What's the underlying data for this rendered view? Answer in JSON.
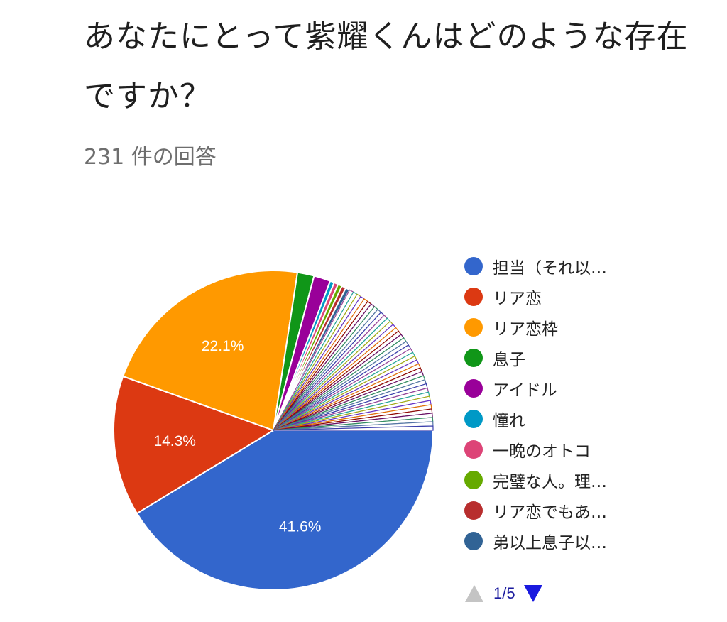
{
  "question": {
    "title": "あなたにとって紫耀くんはどのような存在ですか？",
    "responses": "231 件の回答"
  },
  "chart_data": {
    "type": "pie",
    "title": "あなたにとって紫耀くんはどのような存在ですか？",
    "total_responses": 231,
    "slices": [
      {
        "label": "担当（それ以…",
        "percent": 41.6,
        "color": "#3366cc",
        "show_label": true
      },
      {
        "label": "リア恋",
        "percent": 14.3,
        "color": "#dc3912",
        "show_label": true
      },
      {
        "label": "リア恋枠",
        "percent": 22.1,
        "color": "#ff9900",
        "show_label": true
      },
      {
        "label": "息子",
        "percent": 1.7,
        "color": "#109618",
        "show_label": false
      },
      {
        "label": "アイドル",
        "percent": 1.7,
        "color": "#990099",
        "show_label": false
      },
      {
        "label": "憧れ",
        "percent": 0.43,
        "color": "#0099c6",
        "show_label": false
      },
      {
        "label": "一晩のオトコ",
        "percent": 0.43,
        "color": "#dd4477",
        "show_label": false
      },
      {
        "label": "完璧な人。理…",
        "percent": 0.43,
        "color": "#66aa00",
        "show_label": false
      },
      {
        "label": "リア恋でもあ…",
        "percent": 0.43,
        "color": "#b82e2e",
        "show_label": false
      },
      {
        "label": "弟以上息子以…",
        "percent": 0.43,
        "color": "#316395",
        "show_label": false
      }
    ],
    "other_small_slices": {
      "count": 40,
      "percent_each": 0.43
    },
    "legend_position": "right"
  },
  "legend": {
    "items": [
      {
        "label": "担当（それ以…",
        "color": "#3366cc"
      },
      {
        "label": "リア恋",
        "color": "#dc3912"
      },
      {
        "label": "リア恋枠",
        "color": "#ff9900"
      },
      {
        "label": "息子",
        "color": "#109618"
      },
      {
        "label": "アイドル",
        "color": "#990099"
      },
      {
        "label": "憧れ",
        "color": "#0099c6"
      },
      {
        "label": "一晩のオトコ",
        "color": "#dd4477"
      },
      {
        "label": "完璧な人。理…",
        "color": "#66aa00"
      },
      {
        "label": "リア恋でもあ…",
        "color": "#b82e2e"
      },
      {
        "label": "弟以上息子以…",
        "color": "#316395"
      }
    ]
  },
  "pager": {
    "label": "1/5",
    "current": 1,
    "total": 5,
    "up_icon": "triangle-up-icon",
    "down_icon": "triangle-down-icon"
  }
}
